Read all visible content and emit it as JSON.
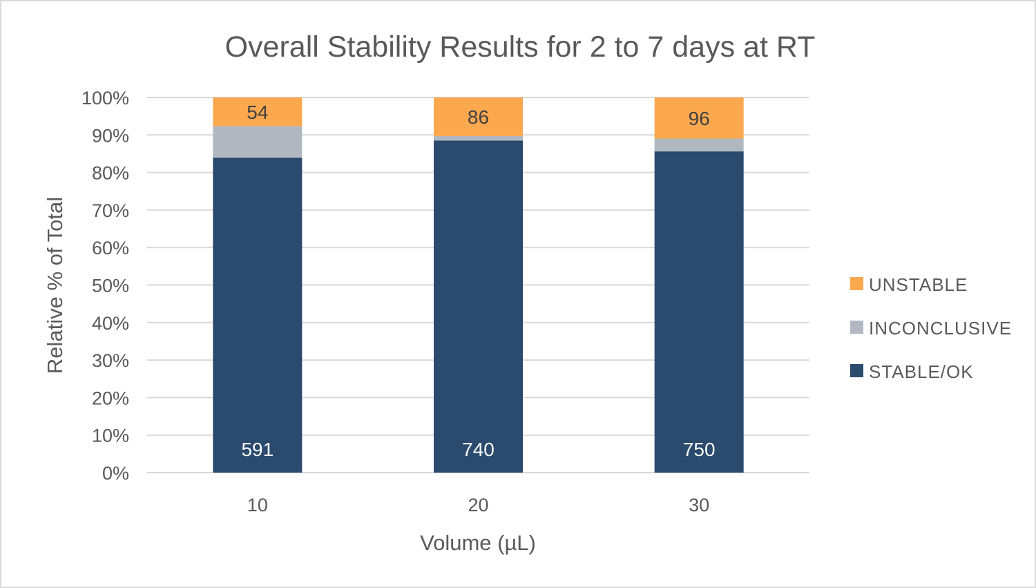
{
  "chart_data": {
    "type": "bar",
    "stacked": "percent",
    "title": "Overall Stability Results for 2 to 7 days at RT",
    "xlabel": "Volume (µL)",
    "ylabel": "Relative % of Total",
    "categories": [
      "10",
      "20",
      "30"
    ],
    "ylim": [
      0,
      100
    ],
    "yticks": [
      "0%",
      "10%",
      "20%",
      "30%",
      "40%",
      "50%",
      "60%",
      "70%",
      "80%",
      "90%",
      "100%"
    ],
    "grid": true,
    "legend_position": "right",
    "series": [
      {
        "name": "STABLE/OK",
        "color": "#2a4a6e",
        "values": [
          591,
          740,
          750
        ],
        "labels": [
          "591",
          "740",
          "750"
        ],
        "label_color": "#ffffff"
      },
      {
        "name": "INCONCLUSIVE",
        "color": "#b1b8c1",
        "values": [
          59,
          10,
          30
        ],
        "labels": [
          "",
          "",
          ""
        ],
        "label_color": "#404040"
      },
      {
        "name": "UNSTABLE",
        "color": "#fba84f",
        "values": [
          54,
          86,
          96
        ],
        "labels": [
          "54",
          "86",
          "96"
        ],
        "label_color": "#404040"
      }
    ],
    "legend_order": [
      "UNSTABLE",
      "INCONCLUSIVE",
      "STABLE/OK"
    ]
  }
}
